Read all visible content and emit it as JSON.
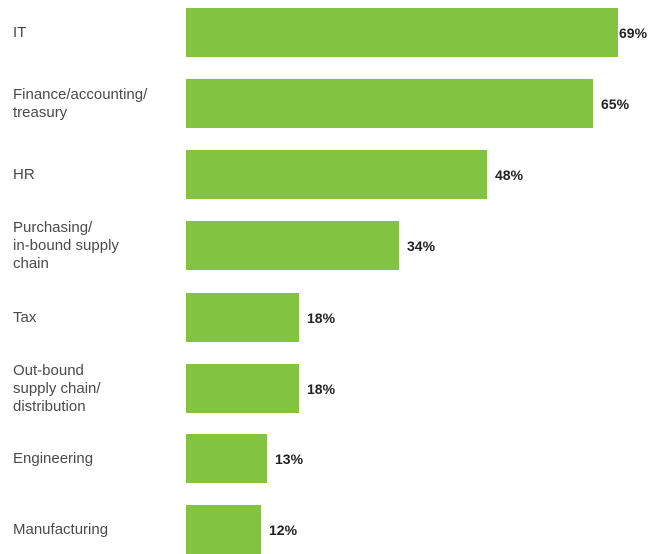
{
  "chart_data": {
    "type": "bar",
    "orientation": "horizontal",
    "categories": [
      "IT",
      "Finance/accounting/\ntreasury",
      "HR",
      "Purchasing/\nin-bound supply\nchain",
      "Tax",
      "Out-bound\nsupply chain/\ndistribution",
      "Engineering",
      "Manufacturing"
    ],
    "values": [
      69,
      65,
      48,
      34,
      18,
      18,
      13,
      12
    ],
    "value_labels": [
      "69%",
      "65%",
      "48%",
      "34%",
      "18%",
      "18%",
      "13%",
      "12%"
    ],
    "unit": "%",
    "xlim": [
      0,
      69
    ],
    "grid": false,
    "title": "",
    "xlabel": "",
    "ylabel": ""
  },
  "colors": {
    "bar": "#82c341",
    "label_text": "#4a4a4a",
    "value_text": "#222222"
  }
}
